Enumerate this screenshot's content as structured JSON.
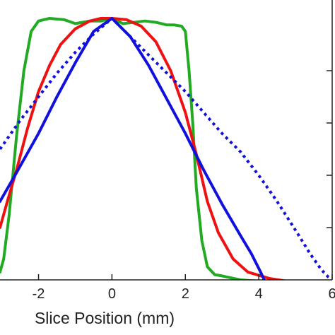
{
  "chart_data": {
    "type": "line",
    "title": "",
    "xlabel": "Slice Position (mm)",
    "ylabel": "",
    "xlim": [
      -3.05,
      6.0
    ],
    "ylim": [
      0.0,
      1.0
    ],
    "grid": false,
    "legend": "none",
    "x_ticks": [
      -2,
      0,
      2,
      4,
      6
    ],
    "x_tick_labels": [
      "-2",
      "0",
      "2",
      "4",
      "6"
    ],
    "y_ticks": [
      0.2,
      0.4,
      0.6,
      0.8
    ],
    "series": [
      {
        "color": "#22aa22",
        "style": "solid",
        "points": [
          [
            -3.05,
            0.03
          ],
          [
            -2.95,
            0.08
          ],
          [
            -2.8,
            0.25
          ],
          [
            -2.6,
            0.55
          ],
          [
            -2.4,
            0.8
          ],
          [
            -2.2,
            0.95
          ],
          [
            -2.0,
            0.99
          ],
          [
            -1.7,
            1.0
          ],
          [
            -1.3,
            0.995
          ],
          [
            -1.0,
            0.98
          ],
          [
            -0.6,
            0.99
          ],
          [
            -0.3,
            0.99
          ],
          [
            0.0,
            1.0
          ],
          [
            0.3,
            0.98
          ],
          [
            0.6,
            0.985
          ],
          [
            0.9,
            0.99
          ],
          [
            1.2,
            0.985
          ],
          [
            1.5,
            0.975
          ],
          [
            1.7,
            0.975
          ],
          [
            1.9,
            0.97
          ],
          [
            2.0,
            0.95
          ],
          [
            2.1,
            0.8
          ],
          [
            2.2,
            0.6
          ],
          [
            2.3,
            0.35
          ],
          [
            2.45,
            0.15
          ],
          [
            2.6,
            0.05
          ],
          [
            2.8,
            0.02
          ],
          [
            3.0,
            0.015
          ],
          [
            3.5,
            0.0
          ],
          [
            4.0,
            -0.005
          ]
        ]
      },
      {
        "color": "#ee1111",
        "style": "solid",
        "points": [
          [
            -3.05,
            0.2
          ],
          [
            -2.85,
            0.3
          ],
          [
            -2.6,
            0.42
          ],
          [
            -2.3,
            0.58
          ],
          [
            -2.0,
            0.72
          ],
          [
            -1.7,
            0.82
          ],
          [
            -1.4,
            0.9
          ],
          [
            -1.0,
            0.96
          ],
          [
            -0.6,
            0.99
          ],
          [
            -0.3,
            1.0
          ],
          [
            0.0,
            1.0
          ],
          [
            0.4,
            0.995
          ],
          [
            0.8,
            0.97
          ],
          [
            1.2,
            0.91
          ],
          [
            1.6,
            0.8
          ],
          [
            2.0,
            0.64
          ],
          [
            2.3,
            0.48
          ],
          [
            2.6,
            0.3
          ],
          [
            2.9,
            0.18
          ],
          [
            3.3,
            0.08
          ],
          [
            3.7,
            0.03
          ],
          [
            4.3,
            0.005
          ],
          [
            5.0,
            -0.01
          ],
          [
            6.0,
            -0.01
          ]
        ]
      },
      {
        "color": "#1111dd",
        "style": "solid",
        "points": [
          [
            -3.05,
            0.3
          ],
          [
            -2.6,
            0.41
          ],
          [
            -2.0,
            0.56
          ],
          [
            -1.5,
            0.7
          ],
          [
            -1.0,
            0.83
          ],
          [
            -0.5,
            0.95
          ],
          [
            0.0,
            1.0
          ],
          [
            0.5,
            0.93
          ],
          [
            1.0,
            0.82
          ],
          [
            1.5,
            0.69
          ],
          [
            2.0,
            0.56
          ],
          [
            2.5,
            0.42
          ],
          [
            3.0,
            0.29
          ],
          [
            3.5,
            0.17
          ],
          [
            3.8,
            0.1
          ],
          [
            4.05,
            0.03
          ],
          [
            4.25,
            -0.03
          ]
        ]
      },
      {
        "color": "#1111dd",
        "style": "dotted",
        "points": [
          [
            -3.05,
            0.5
          ],
          [
            -2.5,
            0.61
          ],
          [
            -2.0,
            0.7
          ],
          [
            -1.5,
            0.79
          ],
          [
            -1.0,
            0.87
          ],
          [
            -0.5,
            0.94
          ],
          [
            0.0,
            1.0
          ],
          [
            0.5,
            0.93
          ],
          [
            1.0,
            0.86
          ],
          [
            1.5,
            0.79
          ],
          [
            2.0,
            0.72
          ],
          [
            2.5,
            0.64
          ],
          [
            3.0,
            0.56
          ],
          [
            3.5,
            0.49
          ],
          [
            4.0,
            0.4
          ],
          [
            4.5,
            0.3
          ],
          [
            5.0,
            0.19
          ],
          [
            5.4,
            0.1
          ],
          [
            5.7,
            0.04
          ],
          [
            5.9,
            0.01
          ],
          [
            6.0,
            0.0
          ]
        ]
      }
    ]
  }
}
